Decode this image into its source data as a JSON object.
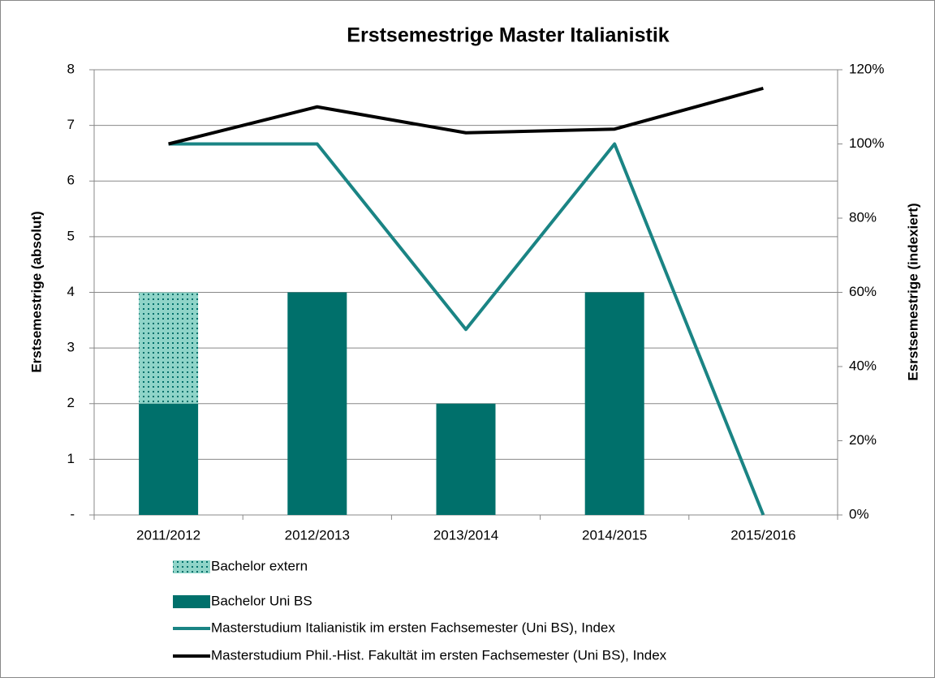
{
  "chart_data": {
    "type": "bar",
    "title": "Erstsemestrige Master Italianistik",
    "y_label": "Erstsemestrige (absolut)",
    "y2_label": "Esrstsemestrige (indexiert)",
    "categories": [
      "2011/2012",
      "2012/2013",
      "2013/2014",
      "2014/2015",
      "2015/2016"
    ],
    "series": [
      {
        "name": "Bachelor extern",
        "type": "bar",
        "color": "#8fd4c8",
        "pattern": "dotted",
        "values": [
          2,
          0,
          0,
          0,
          0
        ]
      },
      {
        "name": "Bachelor Uni BS",
        "type": "bar",
        "color": "#00706b",
        "values": [
          2,
          4,
          2,
          4,
          0
        ]
      },
      {
        "name": "Masterstudium Italianistik im ersten Fachsemester (Uni BS), Index",
        "type": "line",
        "axis": "y2",
        "color": "#1a8484",
        "values": [
          100,
          100,
          50,
          100,
          0
        ]
      },
      {
        "name": "Masterstudium Phil.-Hist. Fakultät im ersten Fachsemester (Uni BS), Index",
        "type": "line",
        "axis": "y2",
        "color": "#000000",
        "values": [
          100,
          110,
          103,
          104,
          115
        ]
      }
    ],
    "stacked": true,
    "ylim": [
      0,
      8
    ],
    "yticks": [
      {
        "value": 0,
        "label": "-"
      },
      1,
      2,
      3,
      4,
      5,
      6,
      7,
      8
    ],
    "y2lim": [
      0,
      120
    ],
    "y2ticks": [
      {
        "value": 0,
        "label": "0%"
      },
      {
        "value": 20,
        "label": "20%"
      },
      {
        "value": 40,
        "label": "40%"
      },
      {
        "value": 60,
        "label": "60%"
      },
      {
        "value": 80,
        "label": "80%"
      },
      {
        "value": 100,
        "label": "100%"
      },
      {
        "value": 120,
        "label": "120%"
      }
    ],
    "grid": true,
    "legend": "bottom"
  }
}
